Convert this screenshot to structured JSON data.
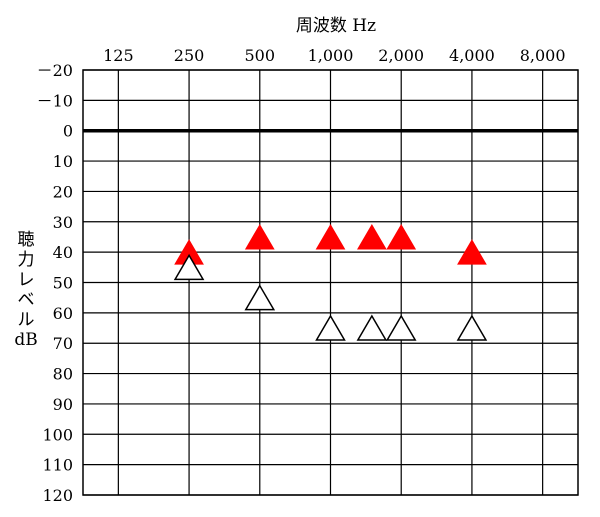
{
  "chart_data": {
    "type": "scatter",
    "title": "周波数 Hz",
    "ylabel_lines": [
      "聴",
      "力",
      "レ",
      "ベ",
      "ル",
      "dB"
    ],
    "x_categories": [
      "125",
      "250",
      "500",
      "1,000",
      "2,000",
      "4,000",
      "8,000"
    ],
    "y_ticks": [
      "－20",
      "－10",
      "0",
      "10",
      "20",
      "30",
      "40",
      "50",
      "60",
      "70",
      "80",
      "90",
      "100",
      "110",
      "120"
    ],
    "ylim": [
      -20,
      120
    ],
    "y_inverted": true,
    "grid": true,
    "series": [
      {
        "marker": "filled-triangle",
        "color": "#ff0000",
        "points": [
          {
            "x": "250",
            "y": 40
          },
          {
            "x": "500",
            "y": 35
          },
          {
            "x": "1,000",
            "y": 35
          },
          {
            "x": "1,500",
            "y": 35
          },
          {
            "x": "2,000",
            "y": 35
          },
          {
            "x": "4,000",
            "y": 40
          }
        ]
      },
      {
        "marker": "open-triangle",
        "color": "#000000",
        "points": [
          {
            "x": "250",
            "y": 45
          },
          {
            "x": "500",
            "y": 55
          },
          {
            "x": "1,000",
            "y": 65
          },
          {
            "x": "1,500",
            "y": 65
          },
          {
            "x": "2,000",
            "y": 65
          },
          {
            "x": "4,000",
            "y": 65
          }
        ]
      }
    ]
  }
}
